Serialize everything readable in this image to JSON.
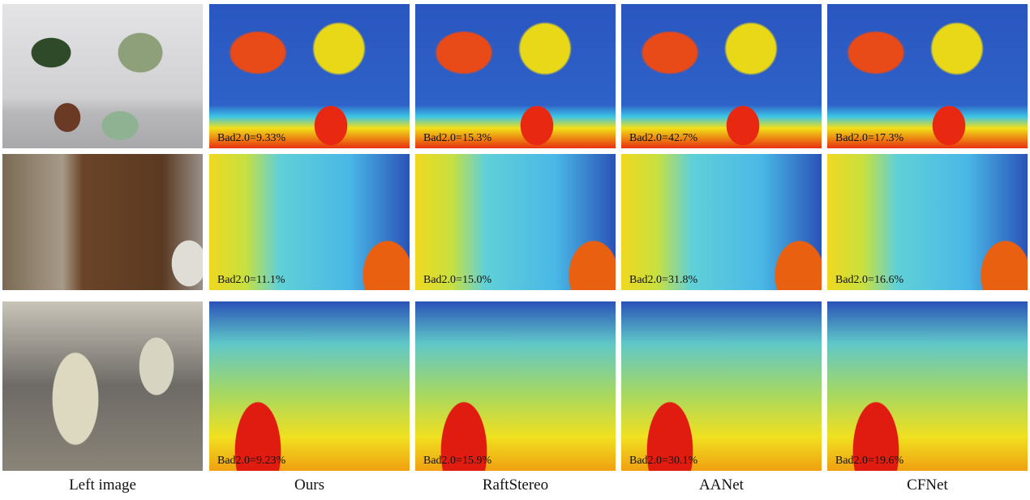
{
  "figure": {
    "columns": [
      "Left image",
      "Ours",
      "RaftStereo",
      "AANet",
      "CFNet"
    ],
    "rows": [
      {
        "metrics": [
          "Bad2.0=9.33%",
          "Bad2.0=15.3%",
          "Bad2.0=42.7%",
          "Bad2.0=17.3%"
        ]
      },
      {
        "metrics": [
          "Bad2.0=11.1%",
          "Bad2.0=15.0%",
          "Bad2.0=31.8%",
          "Bad2.0=16.6%"
        ]
      },
      {
        "metrics": [
          "Bad2.0=9.23%",
          "Bad2.0=15.9%",
          "Bad2.0=30.1%",
          "Bad2.0=19.6%"
        ]
      }
    ]
  }
}
